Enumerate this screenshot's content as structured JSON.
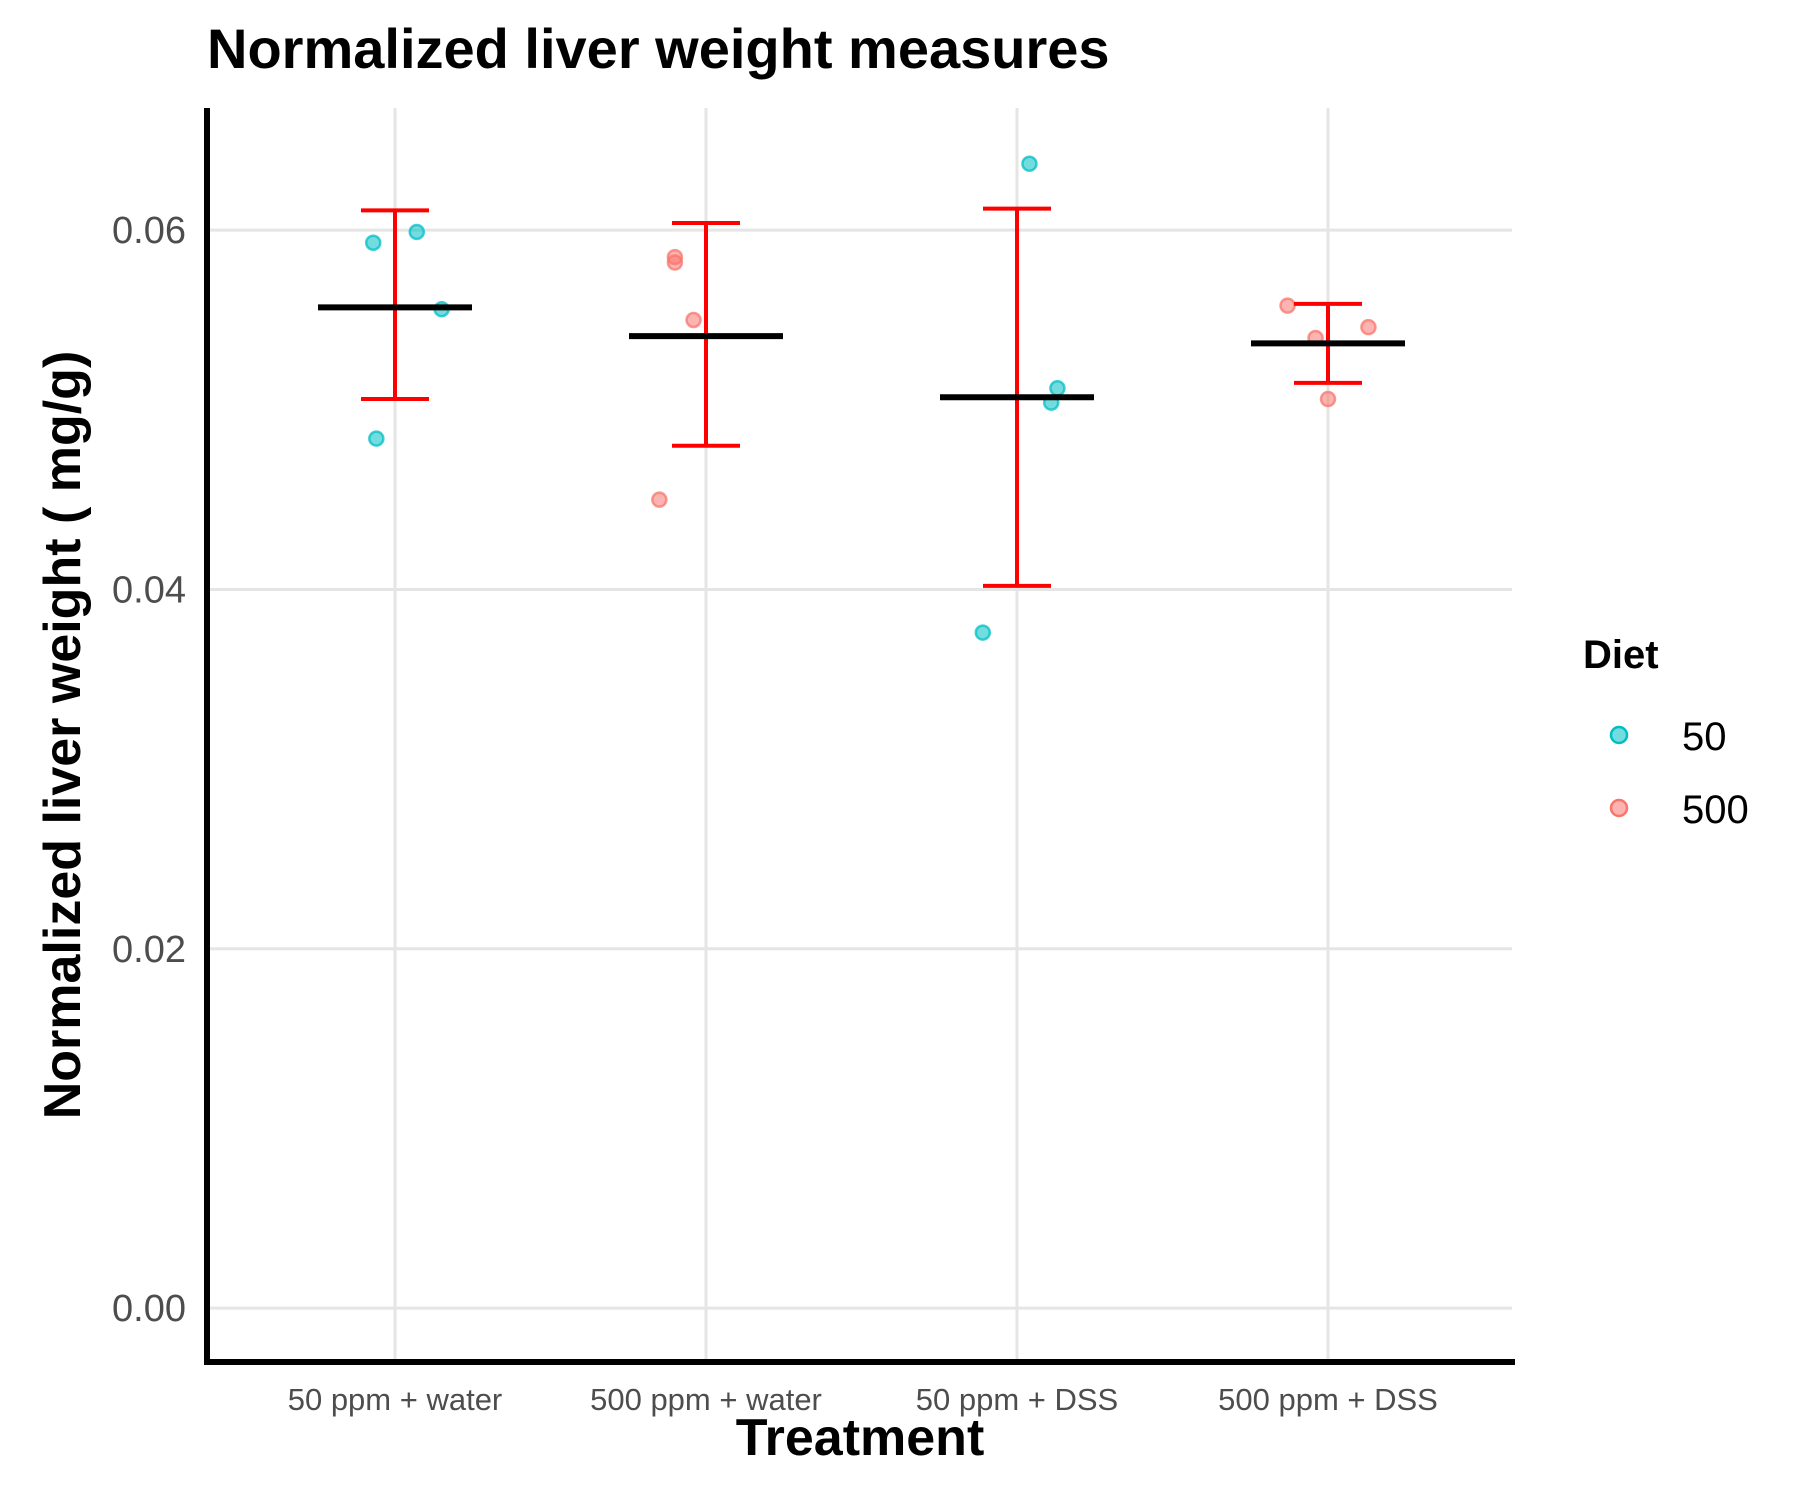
{
  "chart_data": {
    "type": "scatter",
    "title": "Normalized liver weight measures",
    "xlabel": "Treatment",
    "ylabel": "Normalized liver weight ( mg/g)",
    "categories": [
      "50 ppm + water",
      "500 ppm + water",
      "50 ppm + DSS",
      "500 ppm + DSS"
    ],
    "ylim": [
      -0.003,
      0.0668
    ],
    "yticks": [
      0.0,
      0.02,
      0.04,
      0.06
    ],
    "ytick_labels": [
      "0.00",
      "0.02",
      "0.04",
      "0.06"
    ],
    "grid": true,
    "legend": {
      "title": "Diet",
      "placement": "right",
      "entries": [
        {
          "label": "50",
          "color": "#00BFC4"
        },
        {
          "label": "500",
          "color": "#F8766D"
        }
      ]
    },
    "series": [
      {
        "name": "50",
        "color": "#00BFC4",
        "points": [
          {
            "category": "50 ppm + water",
            "y": 0.0593,
            "jitter": -0.07
          },
          {
            "category": "50 ppm + water",
            "y": 0.0599,
            "jitter": 0.07
          },
          {
            "category": "50 ppm + water",
            "y": 0.0556,
            "jitter": 0.15
          },
          {
            "category": "50 ppm + water",
            "y": 0.0484,
            "jitter": -0.06
          },
          {
            "category": "50 ppm + DSS",
            "y": 0.0637,
            "jitter": 0.04
          },
          {
            "category": "50 ppm + DSS",
            "y": 0.0512,
            "jitter": 0.13
          },
          {
            "category": "50 ppm + DSS",
            "y": 0.0504,
            "jitter": 0.11
          },
          {
            "category": "50 ppm + DSS",
            "y": 0.0376,
            "jitter": -0.11
          }
        ]
      },
      {
        "name": "500",
        "color": "#F8766D",
        "points": [
          {
            "category": "500 ppm + water",
            "y": 0.0585,
            "jitter": -0.1
          },
          {
            "category": "500 ppm + water",
            "y": 0.0582,
            "jitter": -0.1
          },
          {
            "category": "500 ppm + water",
            "y": 0.055,
            "jitter": -0.04
          },
          {
            "category": "500 ppm + water",
            "y": 0.045,
            "jitter": -0.15
          },
          {
            "category": "500 ppm + DSS",
            "y": 0.0558,
            "jitter": -0.13
          },
          {
            "category": "500 ppm + DSS",
            "y": 0.054,
            "jitter": -0.04
          },
          {
            "category": "500 ppm + DSS",
            "y": 0.0546,
            "jitter": 0.13
          },
          {
            "category": "500 ppm + DSS",
            "y": 0.0506,
            "jitter": 0.0
          }
        ]
      }
    ],
    "summary": [
      {
        "category": "50 ppm + water",
        "mean": 0.0557,
        "lower": 0.0506,
        "upper": 0.0611
      },
      {
        "category": "500 ppm + water",
        "mean": 0.0541,
        "lower": 0.048,
        "upper": 0.0604
      },
      {
        "category": "50 ppm + DSS",
        "mean": 0.0507,
        "lower": 0.0402,
        "upper": 0.0612
      },
      {
        "category": "500 ppm + DSS",
        "mean": 0.0537,
        "lower": 0.0515,
        "upper": 0.0559
      }
    ],
    "mean_color": "#000000",
    "errorbar_color": "#FF0000"
  }
}
